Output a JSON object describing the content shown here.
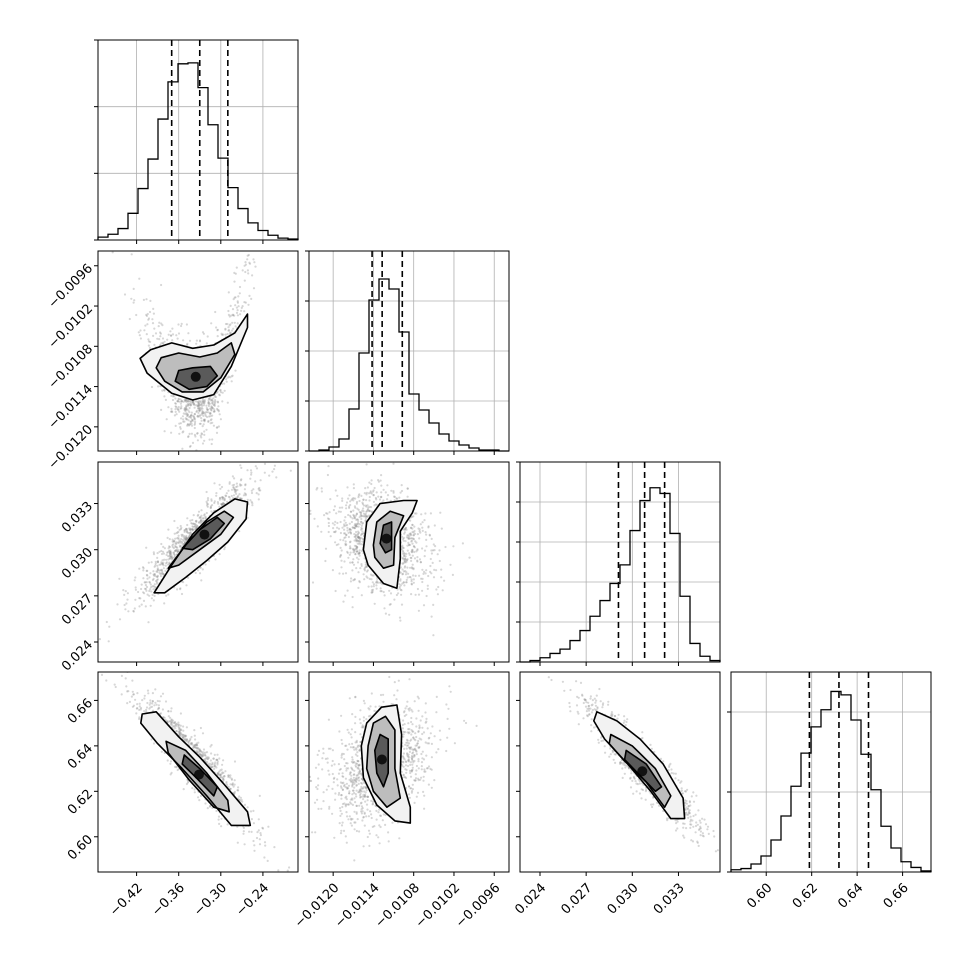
{
  "chart_data": {
    "type": "corner",
    "grid": true,
    "parameters": [
      {
        "range": [
          -0.475,
          -0.19
        ],
        "ticks": [
          -0.42,
          -0.36,
          -0.3,
          -0.24
        ],
        "tick_labels": [
          "−0.42",
          "−0.36",
          "−0.30",
          "−0.24"
        ],
        "quantiles": [
          -0.37,
          -0.33,
          -0.29
        ]
      },
      {
        "range": [
          -0.01236,
          -0.00938
        ],
        "ticks": [
          -0.012,
          -0.0114,
          -0.0108,
          -0.0102,
          -0.0096
        ],
        "tick_labels": [
          "−0.0120",
          "−0.0114",
          "−0.0108",
          "−0.0102",
          "−0.0096"
        ],
        "quantiles": [
          -0.01142,
          -0.01127,
          -0.01097
        ]
      },
      {
        "range": [
          0.0227,
          0.0357
        ],
        "ticks": [
          0.024,
          0.027,
          0.03,
          0.033
        ],
        "tick_labels": [
          "0.024",
          "0.027",
          "0.030",
          "0.033"
        ],
        "quantiles": [
          0.0291,
          0.0308,
          0.0321
        ]
      },
      {
        "range": [
          0.5845,
          0.6725
        ],
        "ticks": [
          0.6,
          0.62,
          0.64,
          0.66
        ],
        "tick_labels": [
          "0.60",
          "0.62",
          "0.64",
          "0.66"
        ],
        "quantiles": [
          0.619,
          0.632,
          0.645
        ]
      }
    ],
    "histograms": [
      {
        "param": 0,
        "edges": [
          -0.475,
          -0.46075,
          -0.4465,
          -0.43225,
          -0.418,
          -0.40375,
          -0.3895,
          -0.37525,
          -0.361,
          -0.34675,
          -0.3325,
          -0.31825,
          -0.304,
          -0.28975,
          -0.2755,
          -0.26125,
          -0.247,
          -0.23275,
          -0.2185,
          -0.20425,
          -0.19
        ],
        "counts": [
          3,
          6,
          12,
          28,
          54,
          85,
          127,
          166,
          185,
          186,
          160,
          121,
          86,
          55,
          33,
          18,
          10,
          5,
          2,
          1
        ],
        "ymax": 210,
        "yticks": [
          0,
          70,
          140,
          210
        ]
      },
      {
        "param": 1,
        "edges": [
          -0.01236,
          -0.012211,
          -0.012062,
          -0.011913,
          -0.011764,
          -0.011615,
          -0.011466,
          -0.011317,
          -0.011168,
          -0.011019,
          -0.01087,
          -0.010721,
          -0.010572,
          -0.010423,
          -0.010274,
          -0.010125,
          -0.009976,
          -0.009827,
          -0.009678,
          -0.009529,
          -0.00938
        ],
        "counts": [
          0,
          1,
          4,
          12,
          42,
          98,
          151,
          172,
          162,
          119,
          57,
          41,
          28,
          17,
          10,
          6,
          3,
          1,
          1,
          0
        ],
        "ymax": 200,
        "yticks": [
          0,
          50,
          100,
          150,
          200
        ]
      },
      {
        "param": 2,
        "edges": [
          0.0227,
          0.02335,
          0.024,
          0.02465,
          0.0253,
          0.02595,
          0.0266,
          0.02725,
          0.0279,
          0.02855,
          0.0292,
          0.02985,
          0.0305,
          0.03115,
          0.0318,
          0.03245,
          0.0331,
          0.03375,
          0.0344,
          0.03505,
          0.0357
        ],
        "counts": [
          0,
          1,
          3,
          6,
          9,
          15,
          22,
          32,
          43,
          55,
          68,
          92,
          113,
          122,
          118,
          90,
          46,
          13,
          4,
          1
        ],
        "ymax": 140,
        "yticks": [
          0,
          28,
          56,
          84,
          112,
          140
        ]
      },
      {
        "param": 3,
        "edges": [
          0.5845,
          0.5889,
          0.5933,
          0.5977,
          0.6021,
          0.6065,
          0.6109,
          0.6153,
          0.6197,
          0.6241,
          0.6285,
          0.6329,
          0.6373,
          0.6417,
          0.6461,
          0.6505,
          0.6549,
          0.6593,
          0.6637,
          0.6681,
          0.6725
        ],
        "counts": [
          2,
          3,
          7,
          14,
          28,
          49,
          75,
          104,
          127,
          142,
          158,
          155,
          133,
          103,
          72,
          40,
          21,
          9,
          4,
          1
        ],
        "ymax": 175,
        "yticks": [
          0,
          70,
          140
        ]
      }
    ],
    "pairs": [
      {
        "x": 0,
        "y": 1,
        "mean": [
          -0.335,
          -0.01128
        ],
        "sd": [
          0.032,
          0.00032
        ],
        "corr": 0.0,
        "bend": 0.00038,
        "scatter_n": 1400,
        "contours": [
          [
            [
              -0.4,
              -0.01085
            ],
            [
              -0.37,
              -0.01075
            ],
            [
              -0.34,
              -0.01083
            ],
            [
              -0.31,
              -0.01078
            ],
            [
              -0.28,
              -0.0106
            ],
            [
              -0.262,
              -0.01032
            ],
            [
              -0.262,
              -0.01052
            ],
            [
              -0.285,
              -0.0111
            ],
            [
              -0.31,
              -0.01152
            ],
            [
              -0.34,
              -0.0116
            ],
            [
              -0.37,
              -0.0115
            ],
            [
              -0.405,
              -0.0112
            ],
            [
              -0.415,
              -0.01098
            ]
          ],
          [
            [
              -0.385,
              -0.01097
            ],
            [
              -0.36,
              -0.0109
            ],
            [
              -0.33,
              -0.01096
            ],
            [
              -0.305,
              -0.0109
            ],
            [
              -0.285,
              -0.01075
            ],
            [
              -0.28,
              -0.01092
            ],
            [
              -0.3,
              -0.01127
            ],
            [
              -0.325,
              -0.01148
            ],
            [
              -0.355,
              -0.01148
            ],
            [
              -0.38,
              -0.01132
            ],
            [
              -0.392,
              -0.01112
            ]
          ],
          [
            [
              -0.36,
              -0.01116
            ],
            [
              -0.34,
              -0.01112
            ],
            [
              -0.315,
              -0.0111
            ],
            [
              -0.305,
              -0.01124
            ],
            [
              -0.32,
              -0.0114
            ],
            [
              -0.345,
              -0.01144
            ],
            [
              -0.365,
              -0.01132
            ]
          ]
        ]
      },
      {
        "x": 0,
        "y": 2,
        "mean": [
          -0.335,
          0.0306
        ],
        "sd": [
          0.035,
          0.00165
        ],
        "corr": 0.86,
        "bend": 0.0,
        "scatter_n": 1400,
        "contours": [
          [
            [
              -0.395,
              0.0272
            ],
            [
              -0.37,
              0.029
            ],
            [
              -0.34,
              0.031
            ],
            [
              -0.31,
              0.0324
            ],
            [
              -0.28,
              0.0333
            ],
            [
              -0.262,
              0.0331
            ],
            [
              -0.264,
              0.032
            ],
            [
              -0.29,
              0.0305
            ],
            [
              -0.32,
              0.0293
            ],
            [
              -0.35,
              0.0282
            ],
            [
              -0.38,
              0.0272
            ]
          ],
          [
            [
              -0.375,
              0.0288
            ],
            [
              -0.35,
              0.0303
            ],
            [
              -0.32,
              0.0318
            ],
            [
              -0.295,
              0.0325
            ],
            [
              -0.282,
              0.0321
            ],
            [
              -0.3,
              0.031
            ],
            [
              -0.33,
              0.03
            ],
            [
              -0.36,
              0.029
            ]
          ],
          [
            [
              -0.355,
              0.0301
            ],
            [
              -0.33,
              0.0313
            ],
            [
              -0.305,
              0.0321
            ],
            [
              -0.295,
              0.0317
            ],
            [
              -0.315,
              0.0307
            ],
            [
              -0.34,
              0.03
            ]
          ]
        ]
      },
      {
        "x": 1,
        "y": 2,
        "mean": [
          -0.01128,
          0.0306
        ],
        "sd": [
          0.00032,
          0.00165
        ],
        "corr": -0.25,
        "bend": 0.0,
        "scatter_n": 1400,
        "contours": [
          [
            [
              -0.01155,
              0.03
            ],
            [
              -0.0115,
              0.0318
            ],
            [
              -0.0113,
              0.033
            ],
            [
              -0.01095,
              0.0332
            ],
            [
              -0.01075,
              0.0332
            ],
            [
              -0.01082,
              0.0324
            ],
            [
              -0.011,
              0.0312
            ],
            [
              -0.011,
              0.0294
            ],
            [
              -0.01105,
              0.0275
            ],
            [
              -0.01125,
              0.0278
            ],
            [
              -0.01148,
              0.029
            ]
          ],
          [
            [
              -0.0114,
              0.0303
            ],
            [
              -0.01135,
              0.0318
            ],
            [
              -0.01115,
              0.0325
            ],
            [
              -0.01095,
              0.0322
            ],
            [
              -0.01108,
              0.0308
            ],
            [
              -0.0111,
              0.029
            ],
            [
              -0.01125,
              0.0288
            ],
            [
              -0.01138,
              0.0295
            ]
          ],
          [
            [
              -0.0113,
              0.0304
            ],
            [
              -0.01125,
              0.0316
            ],
            [
              -0.01113,
              0.0318
            ],
            [
              -0.01113,
              0.03
            ],
            [
              -0.01122,
              0.0298
            ]
          ]
        ]
      },
      {
        "x": 0,
        "y": 3,
        "mean": [
          -0.335,
          0.632
        ],
        "sd": [
          0.035,
          0.0125
        ],
        "corr": -0.9,
        "bend": 0.0,
        "scatter_n": 1400,
        "contours": [
          [
            [
              -0.412,
              0.654
            ],
            [
              -0.392,
              0.655
            ],
            [
              -0.36,
              0.644
            ],
            [
              -0.33,
              0.635
            ],
            [
              -0.295,
              0.623
            ],
            [
              -0.262,
              0.611
            ],
            [
              -0.258,
              0.605
            ],
            [
              -0.285,
              0.605
            ],
            [
              -0.32,
              0.618
            ],
            [
              -0.355,
              0.63
            ],
            [
              -0.39,
              0.641
            ],
            [
              -0.414,
              0.65
            ]
          ],
          [
            [
              -0.378,
              0.642
            ],
            [
              -0.35,
              0.638
            ],
            [
              -0.32,
              0.628
            ],
            [
              -0.29,
              0.616
            ],
            [
              -0.288,
              0.611
            ],
            [
              -0.31,
              0.613
            ],
            [
              -0.345,
              0.625
            ],
            [
              -0.375,
              0.637
            ]
          ],
          [
            [
              -0.352,
              0.636
            ],
            [
              -0.33,
              0.63
            ],
            [
              -0.305,
              0.622
            ],
            [
              -0.31,
              0.618
            ],
            [
              -0.335,
              0.626
            ],
            [
              -0.355,
              0.632
            ]
          ]
        ]
      },
      {
        "x": 1,
        "y": 3,
        "mean": [
          -0.01128,
          0.632
        ],
        "sd": [
          0.00032,
          0.0125
        ],
        "corr": 0.28,
        "bend": 0.0,
        "scatter_n": 1400,
        "contours": [
          [
            [
              -0.01158,
              0.64
            ],
            [
              -0.0115,
              0.65
            ],
            [
              -0.01128,
              0.657
            ],
            [
              -0.01105,
              0.658
            ],
            [
              -0.01098,
              0.645
            ],
            [
              -0.011,
              0.628
            ],
            [
              -0.01085,
              0.613
            ],
            [
              -0.01085,
              0.606
            ],
            [
              -0.01108,
              0.607
            ],
            [
              -0.01135,
              0.614
            ],
            [
              -0.01155,
              0.626
            ]
          ],
          [
            [
              -0.01148,
              0.64
            ],
            [
              -0.0114,
              0.65
            ],
            [
              -0.01122,
              0.653
            ],
            [
              -0.01108,
              0.647
            ],
            [
              -0.01108,
              0.63
            ],
            [
              -0.011,
              0.617
            ],
            [
              -0.0112,
              0.613
            ],
            [
              -0.0114,
              0.62
            ],
            [
              -0.0115,
              0.63
            ]
          ],
          [
            [
              -0.01138,
              0.638
            ],
            [
              -0.0113,
              0.645
            ],
            [
              -0.01118,
              0.643
            ],
            [
              -0.01118,
              0.628
            ],
            [
              -0.01125,
              0.622
            ],
            [
              -0.01135,
              0.628
            ]
          ]
        ]
      },
      {
        "x": 2,
        "y": 3,
        "mean": [
          0.0306,
          0.632
        ],
        "sd": [
          0.00165,
          0.0125
        ],
        "corr": -0.92,
        "bend": 0.0,
        "scatter_n": 1400,
        "contours": [
          [
            [
              0.0277,
              0.655
            ],
            [
              0.029,
              0.651
            ],
            [
              0.0305,
              0.643
            ],
            [
              0.032,
              0.632
            ],
            [
              0.0333,
              0.617
            ],
            [
              0.0334,
              0.608
            ],
            [
              0.0325,
              0.608
            ],
            [
              0.0312,
              0.62
            ],
            [
              0.0297,
              0.632
            ],
            [
              0.0282,
              0.643
            ],
            [
              0.0275,
              0.651
            ]
          ],
          [
            [
              0.0286,
              0.645
            ],
            [
              0.03,
              0.64
            ],
            [
              0.0315,
              0.63
            ],
            [
              0.0325,
              0.618
            ],
            [
              0.0321,
              0.613
            ],
            [
              0.0309,
              0.624
            ],
            [
              0.0294,
              0.634
            ],
            [
              0.0285,
              0.641
            ]
          ],
          [
            [
              0.0296,
              0.638
            ],
            [
              0.0309,
              0.632
            ],
            [
              0.0319,
              0.622
            ],
            [
              0.0315,
              0.62
            ],
            [
              0.0305,
              0.627
            ],
            [
              0.0295,
              0.634
            ]
          ]
        ]
      }
    ]
  }
}
